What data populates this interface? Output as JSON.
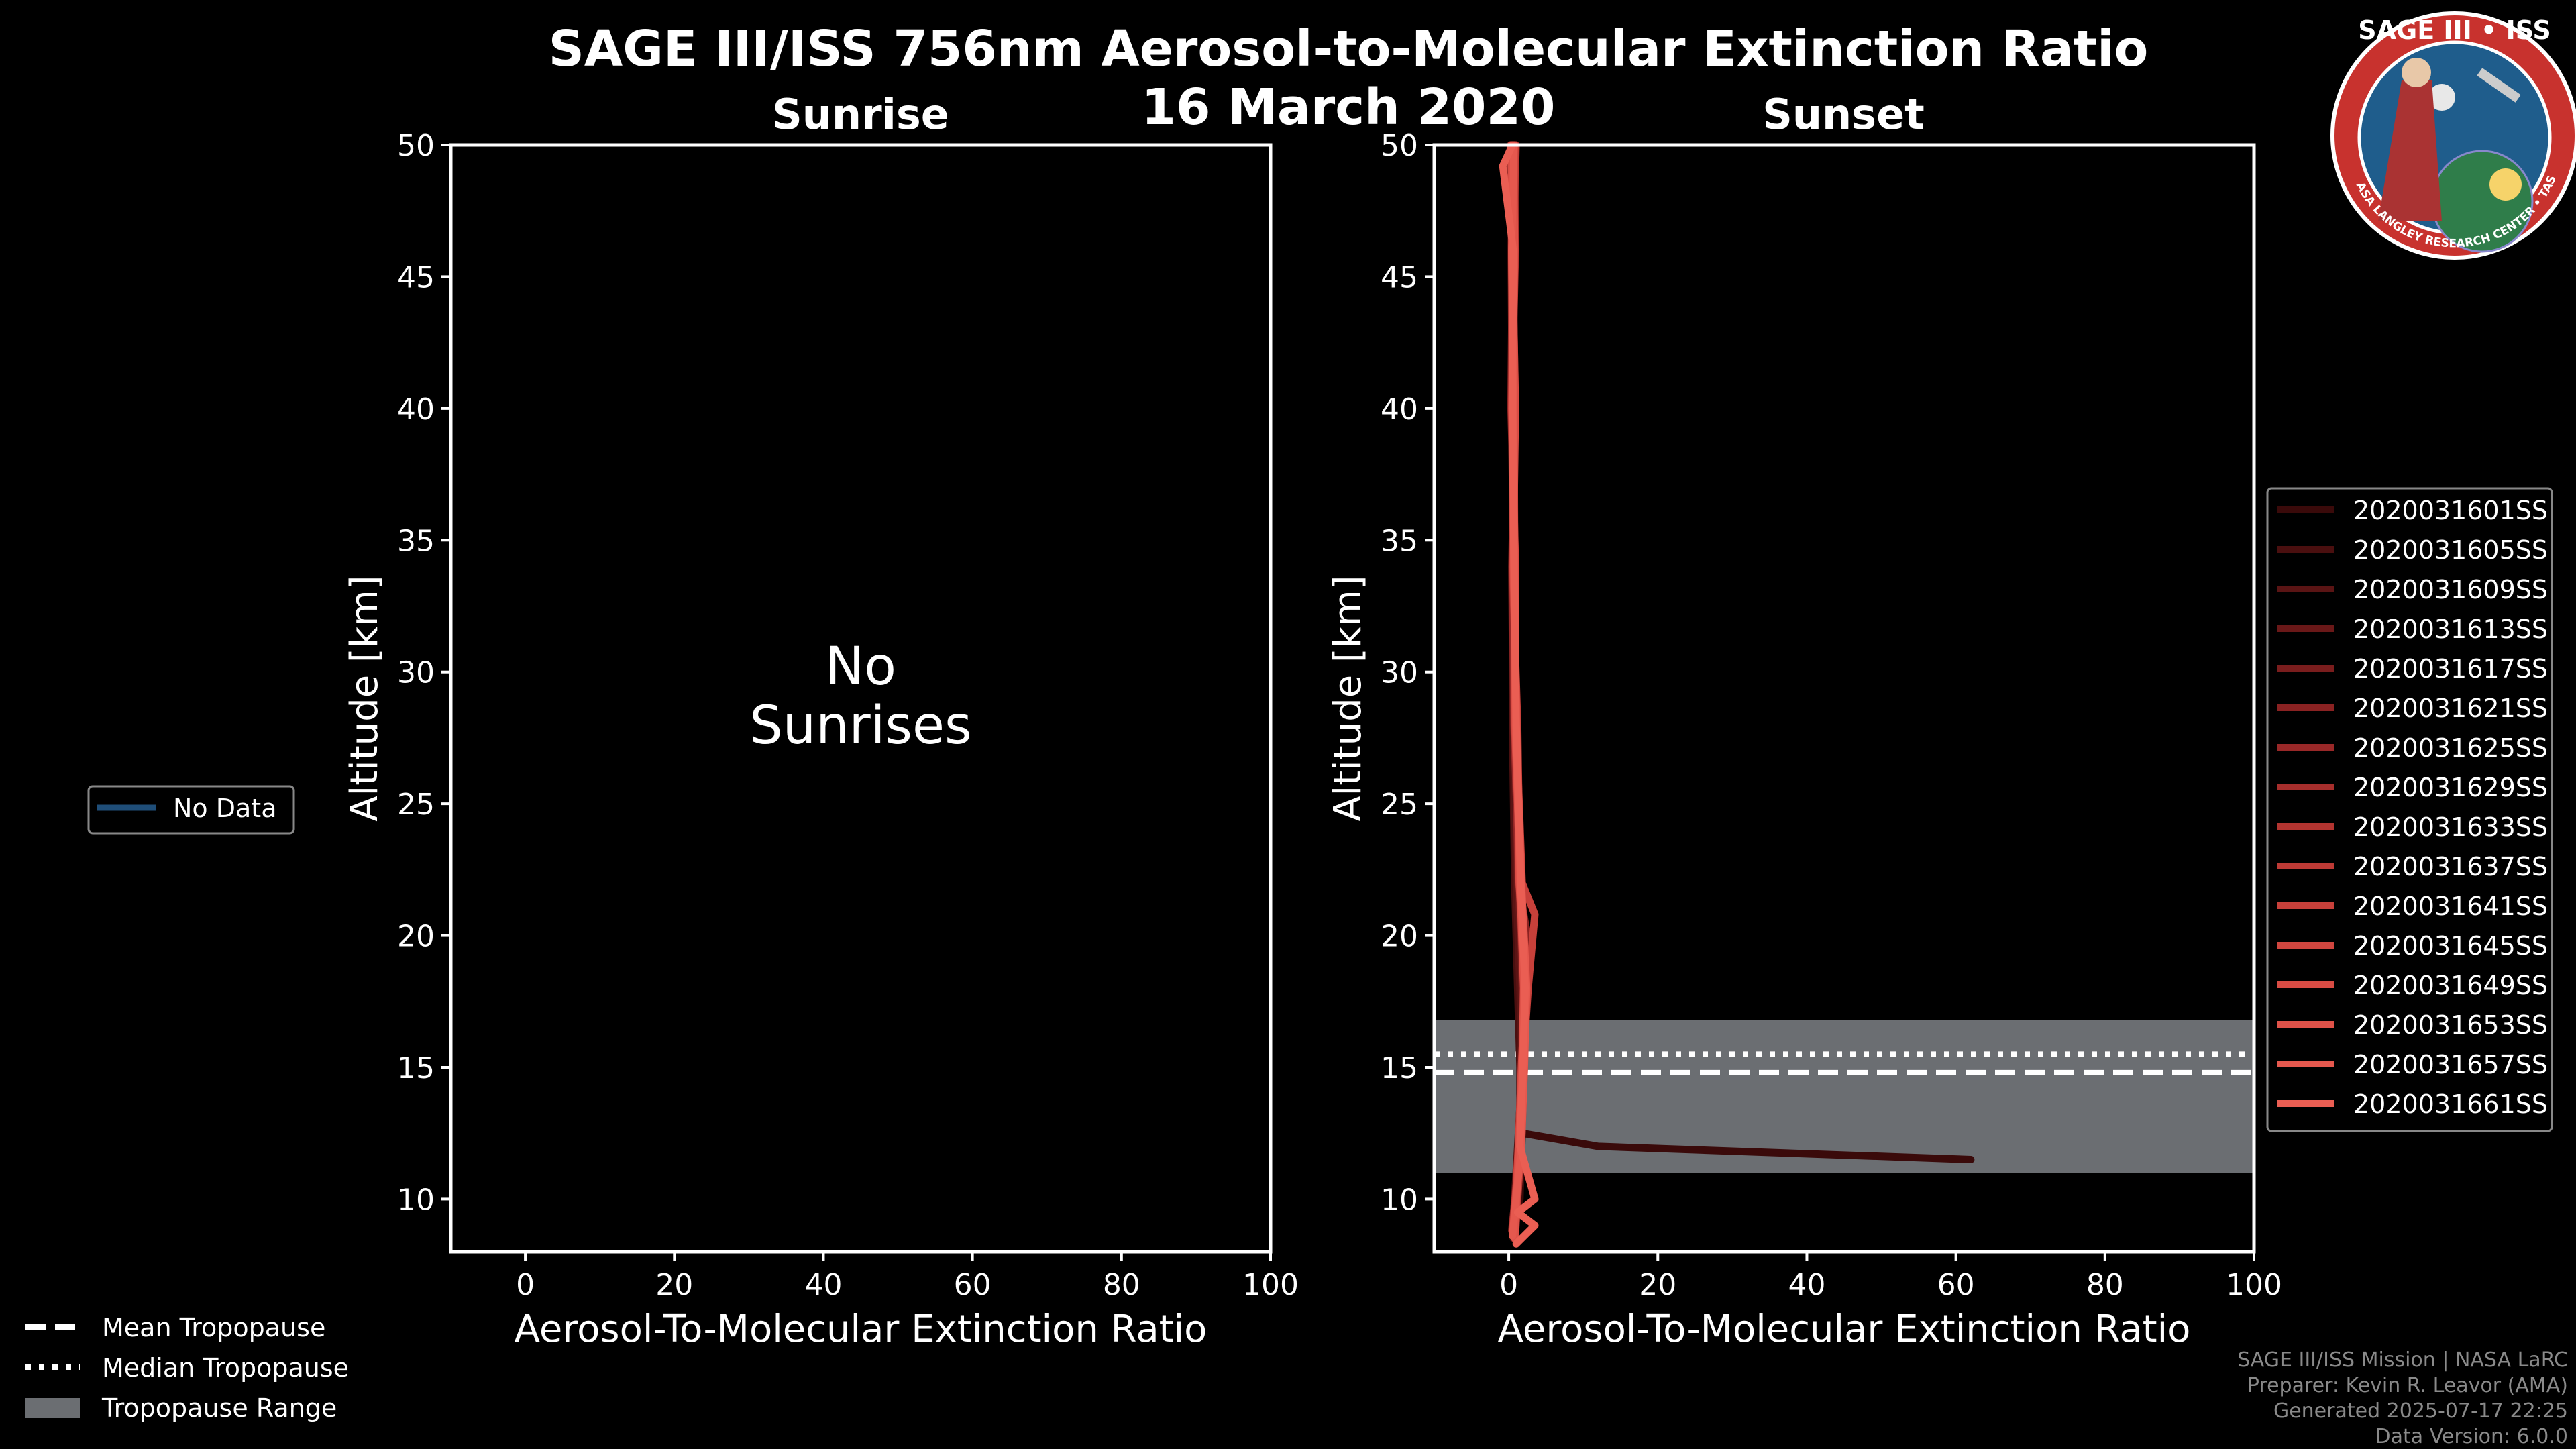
{
  "header": {
    "title": "SAGE III/ISS 756nm Aerosol-to-Molecular Extinction Ratio",
    "date": "16 March 2020"
  },
  "logo": {
    "text": "SAGE III • ISS",
    "ring_text": "BALL • NASA LANGLEY RESEARCH CENTER • TAS-I • ESA",
    "colors": {
      "ring": "#c8322e",
      "inner": "#1f5d8c"
    }
  },
  "chart_data": [
    {
      "type": "line",
      "title": "Sunrise",
      "xlabel": "Aerosol-To-Molecular Extinction Ratio",
      "ylabel": "Altitude [km]",
      "xlim": [
        -10,
        100
      ],
      "ylim": [
        8,
        50
      ],
      "xticks": [
        0,
        20,
        40,
        60,
        80,
        100
      ],
      "yticks": [
        10,
        15,
        20,
        25,
        30,
        35,
        40,
        45,
        50
      ],
      "annotation_lines": [
        "No",
        "Sunrises"
      ],
      "series": []
    },
    {
      "type": "line",
      "title": "Sunset",
      "xlabel": "Aerosol-To-Molecular Extinction Ratio",
      "ylabel": "Altitude [km]",
      "xlim": [
        -10,
        100
      ],
      "ylim": [
        8,
        50
      ],
      "xticks": [
        0,
        20,
        40,
        60,
        80,
        100
      ],
      "yticks": [
        10,
        15,
        20,
        25,
        30,
        35,
        40,
        45,
        50
      ],
      "tropopause": {
        "mean": 14.8,
        "median": 15.5,
        "range": [
          11.0,
          16.8
        ]
      },
      "series": [
        {
          "name": "2020031601SS",
          "color": "#3a0a0a",
          "points": [
            [
              0.6,
              8.5
            ],
            [
              1.5,
              10
            ],
            [
              1.8,
              12.5
            ],
            [
              12,
              12
            ],
            [
              62,
              11.5
            ]
          ]
        },
        {
          "name": "2020031605SS",
          "color": "#4a0f0f",
          "points": [
            [
              0.8,
              8.5
            ],
            [
              1.5,
              12
            ],
            [
              1.5,
              15
            ],
            [
              1.2,
              18
            ],
            [
              0.8,
              22
            ],
            [
              0.5,
              28
            ],
            [
              0.8,
              34
            ],
            [
              0.5,
              40
            ],
            [
              0.3,
              46
            ],
            [
              0.5,
              50
            ]
          ]
        },
        {
          "name": "2020031609SS",
          "color": "#5a1414",
          "points": [
            [
              0.5,
              8.6
            ],
            [
              1.2,
              12
            ],
            [
              1.8,
              15
            ],
            [
              1.5,
              18
            ],
            [
              1.0,
              22
            ],
            [
              0.6,
              28
            ],
            [
              0.4,
              34
            ],
            [
              0.9,
              40
            ],
            [
              0.5,
              46
            ],
            [
              0.2,
              50
            ]
          ]
        },
        {
          "name": "2020031613SS",
          "color": "#6a1818",
          "points": [
            [
              0.9,
              8.7
            ],
            [
              1.4,
              12
            ],
            [
              1.6,
              15
            ],
            [
              2.0,
              18
            ],
            [
              1.2,
              22
            ],
            [
              0.9,
              28
            ],
            [
              0.6,
              34
            ],
            [
              0.5,
              40
            ],
            [
              0.8,
              46
            ],
            [
              0.9,
              50
            ]
          ]
        },
        {
          "name": "2020031617SS",
          "color": "#7a1d1d",
          "points": [
            [
              0.4,
              8.8
            ],
            [
              1.6,
              12
            ],
            [
              2.0,
              15
            ],
            [
              1.8,
              18
            ],
            [
              1.5,
              22
            ],
            [
              1.0,
              28
            ],
            [
              0.7,
              34
            ],
            [
              0.6,
              40
            ],
            [
              0.4,
              46
            ],
            [
              0.6,
              50
            ]
          ]
        },
        {
          "name": "2020031621SS",
          "color": "#8a2222",
          "points": [
            [
              0.7,
              8.9
            ],
            [
              1.3,
              12
            ],
            [
              1.7,
              15
            ],
            [
              2.2,
              18
            ],
            [
              2.5,
              20
            ],
            [
              1.3,
              22
            ],
            [
              0.8,
              28
            ],
            [
              0.9,
              34
            ],
            [
              0.3,
              40
            ],
            [
              0.5,
              46
            ],
            [
              1.0,
              50
            ]
          ]
        },
        {
          "name": "2020031625SS",
          "color": "#992828",
          "points": [
            [
              0.5,
              9.0
            ],
            [
              1.5,
              12
            ],
            [
              1.9,
              15
            ],
            [
              2.0,
              18
            ],
            [
              1.4,
              22
            ],
            [
              0.7,
              28
            ],
            [
              0.5,
              34
            ],
            [
              0.8,
              40
            ],
            [
              0.6,
              46
            ],
            [
              0.3,
              50
            ]
          ]
        },
        {
          "name": "2020031629SS",
          "color": "#a62e2c",
          "points": [
            [
              0.8,
              8.5
            ],
            [
              1.7,
              12
            ],
            [
              2.1,
              15
            ],
            [
              2.3,
              18
            ],
            [
              1.6,
              22
            ],
            [
              1.1,
              28
            ],
            [
              0.6,
              34
            ],
            [
              0.4,
              40
            ],
            [
              0.9,
              46
            ],
            [
              0.7,
              50
            ]
          ]
        },
        {
          "name": "2020031633SS",
          "color": "#b23430",
          "points": [
            [
              0.6,
              8.6
            ],
            [
              1.4,
              12
            ],
            [
              1.8,
              15
            ],
            [
              2.4,
              18
            ],
            [
              1.7,
              22
            ],
            [
              0.9,
              28
            ],
            [
              0.8,
              34
            ],
            [
              0.7,
              40
            ],
            [
              0.5,
              46
            ],
            [
              0.4,
              50
            ]
          ]
        },
        {
          "name": "2020031637SS",
          "color": "#bd3a35",
          "points": [
            [
              0.9,
              8.7
            ],
            [
              1.6,
              12
            ],
            [
              2.0,
              15
            ],
            [
              2.1,
              18
            ],
            [
              1.5,
              22
            ],
            [
              1.2,
              28
            ],
            [
              0.5,
              34
            ],
            [
              0.6,
              40
            ],
            [
              0.7,
              46
            ],
            [
              0.9,
              50
            ]
          ]
        },
        {
          "name": "2020031641SS",
          "color": "#c7403a",
          "points": [
            [
              0.5,
              8.8
            ],
            [
              1.5,
              12
            ],
            [
              1.9,
              15
            ],
            [
              2.6,
              18
            ],
            [
              3.5,
              20.8
            ],
            [
              1.8,
              22
            ],
            [
              1.0,
              28
            ],
            [
              0.7,
              34
            ],
            [
              0.5,
              40
            ],
            [
              0.4,
              46
            ],
            [
              0.6,
              50
            ]
          ]
        },
        {
          "name": "2020031645SS",
          "color": "#d0463f",
          "points": [
            [
              0.7,
              8.9
            ],
            [
              1.3,
              12
            ],
            [
              1.7,
              15
            ],
            [
              2.2,
              18
            ],
            [
              1.6,
              22
            ],
            [
              0.8,
              28
            ],
            [
              0.9,
              34
            ],
            [
              0.4,
              40
            ],
            [
              0.6,
              46
            ],
            [
              0.8,
              50
            ]
          ]
        },
        {
          "name": "2020031649SS",
          "color": "#d84c44",
          "points": [
            [
              0.6,
              9.0
            ],
            [
              1.6,
              12
            ],
            [
              2.0,
              15
            ],
            [
              2.3,
              18
            ],
            [
              1.4,
              22
            ],
            [
              1.1,
              28
            ],
            [
              0.6,
              34
            ],
            [
              0.9,
              40
            ],
            [
              0.5,
              46
            ],
            [
              0.3,
              50
            ]
          ]
        },
        {
          "name": "2020031653SS",
          "color": "#df5249",
          "points": [
            [
              0.8,
              8.5
            ],
            [
              1.4,
              12
            ],
            [
              1.8,
              15
            ],
            [
              2.0,
              18
            ],
            [
              1.5,
              22
            ],
            [
              0.9,
              28
            ],
            [
              0.7,
              34
            ],
            [
              0.5,
              40
            ],
            [
              0.8,
              46
            ],
            [
              0.6,
              50
            ]
          ]
        },
        {
          "name": "2020031657SS",
          "color": "#e5584e",
          "points": [
            [
              0.5,
              8.6
            ],
            [
              1.7,
              12
            ],
            [
              2.1,
              15
            ],
            [
              2.4,
              18
            ],
            [
              1.7,
              22
            ],
            [
              1.0,
              28
            ],
            [
              0.8,
              34
            ],
            [
              0.6,
              40
            ],
            [
              0.4,
              46
            ],
            [
              0.7,
              50
            ]
          ]
        },
        {
          "name": "2020031661SS",
          "color": "#ea5e53",
          "points": [
            [
              1.0,
              8.3
            ],
            [
              3.5,
              9.0
            ],
            [
              1.2,
              9.5
            ],
            [
              3.5,
              10
            ],
            [
              1.5,
              12
            ],
            [
              1.9,
              15
            ],
            [
              2.2,
              18
            ],
            [
              1.6,
              22
            ],
            [
              1.0,
              28
            ],
            [
              0.7,
              34
            ],
            [
              0.5,
              40
            ],
            [
              0.6,
              46
            ],
            [
              -0.8,
              49.2
            ],
            [
              0.5,
              50
            ]
          ]
        }
      ]
    }
  ],
  "left_legend": {
    "no_data_label": "No Data",
    "no_data_color": "#1f4e79"
  },
  "tropopause_legend": {
    "mean_label": "Mean Tropopause",
    "median_label": "Median Tropopause",
    "range_label": "Tropopause Range",
    "range_color": "#6b6e72"
  },
  "credits": [
    "SAGE III/ISS Mission | NASA LaRC",
    "Preparer: Kevin R. Leavor (AMA)",
    "Generated 2025-07-17 22:25",
    "Data Version: 6.0.0"
  ]
}
